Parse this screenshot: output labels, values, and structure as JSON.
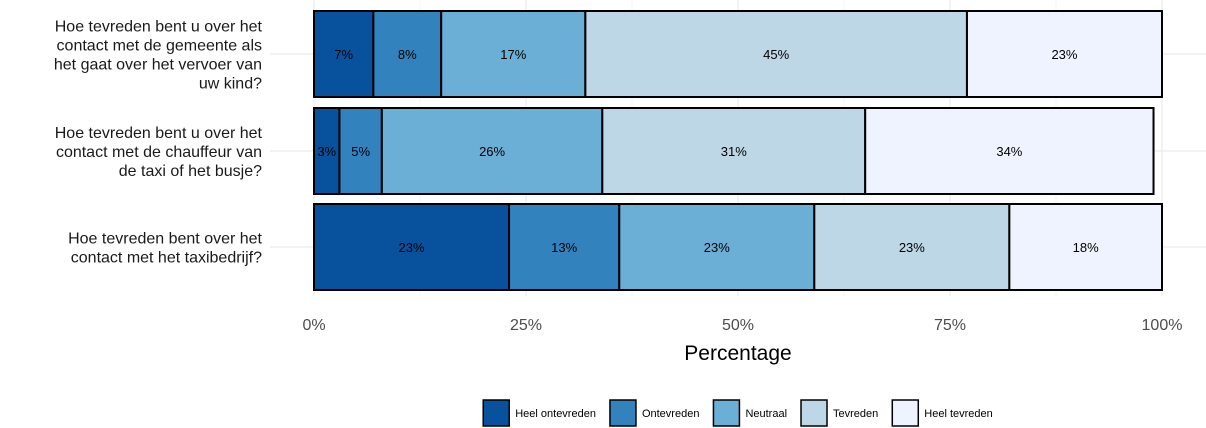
{
  "chart_data": {
    "type": "bar",
    "orientation": "horizontal",
    "stacked": true,
    "xlabel": "Percentage",
    "ylabel": "",
    "xlim": [
      0,
      100
    ],
    "x_ticks": [
      0,
      25,
      50,
      75,
      100
    ],
    "x_tick_labels": [
      "0%",
      "25%",
      "50%",
      "75%",
      "100%"
    ],
    "grid": true,
    "legend_position": "bottom",
    "categories": [
      [
        "Hoe tevreden bent u over het",
        "contact met de gemeente als",
        "het gaat over het vervoer van",
        "uw kind?"
      ],
      [
        "Hoe tevreden bent u over het",
        "contact met de chauffeur van",
        "de taxi of het busje?"
      ],
      [
        "Hoe tevreden bent over het",
        "contact met het taxibedrijf?"
      ]
    ],
    "series": [
      {
        "name": "Heel ontevreden",
        "color": "#08519c",
        "values": [
          7,
          3,
          23
        ],
        "labels": [
          "7%",
          "3%",
          "23%"
        ]
      },
      {
        "name": "Ontevreden",
        "color": "#3182bd",
        "values": [
          8,
          5,
          13
        ],
        "labels": [
          "8%",
          "5%",
          "13%"
        ]
      },
      {
        "name": "Neutraal",
        "color": "#6baed6",
        "values": [
          17,
          26,
          23
        ],
        "labels": [
          "17%",
          "26%",
          "23%"
        ]
      },
      {
        "name": "Tevreden",
        "color": "#bdd7e7",
        "values": [
          45,
          31,
          23
        ],
        "labels": [
          "45%",
          "31%",
          "23%"
        ]
      },
      {
        "name": "Heel tevreden",
        "color": "#eff3ff",
        "values": [
          23,
          34,
          18
        ],
        "labels": [
          "23%",
          "34%",
          "18%"
        ]
      }
    ]
  }
}
